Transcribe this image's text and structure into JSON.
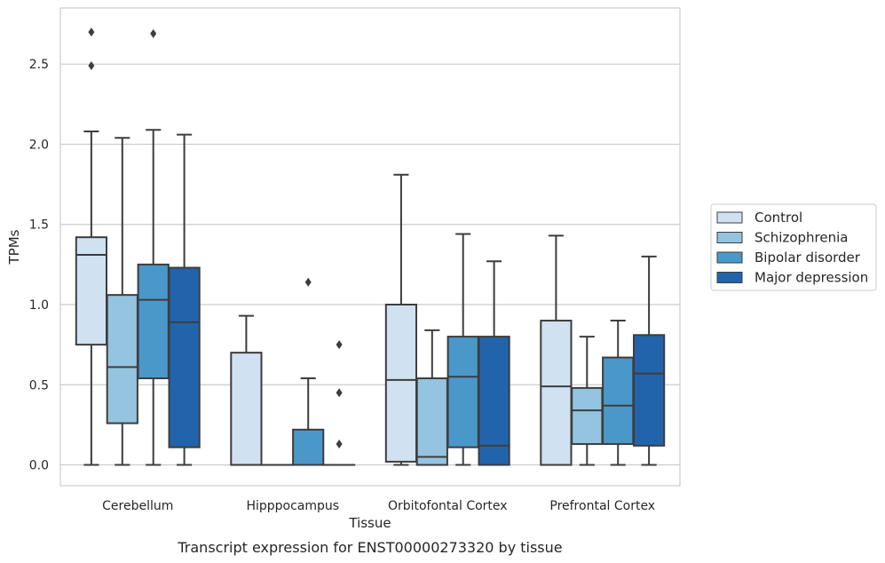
{
  "chart_data": {
    "type": "box",
    "title": "",
    "xlabel": "Tissue",
    "ylabel": "TPMs",
    "caption": "Transcript expression for ENST00000273320 by tissue",
    "ylim": [
      -0.13,
      2.85
    ],
    "yticks": [
      "0.0",
      "0.5",
      "1.0",
      "1.5",
      "2.0",
      "2.5"
    ],
    "grid": "horizontal",
    "legend_position": "right",
    "categories": [
      "Cerebellum",
      "Hipppocampus",
      "Orbitofontal Cortex",
      "Prefrontal Cortex"
    ],
    "series": [
      {
        "name": "Control",
        "color": "#d0e1f2",
        "boxes": [
          {
            "whislo": 0.0,
            "q1": 0.75,
            "med": 1.31,
            "q3": 1.42,
            "whishi": 2.08,
            "fliers": [
              2.7,
              2.49
            ]
          },
          {
            "whislo": 0.0,
            "q1": 0.0,
            "med": 0.0,
            "q3": 0.7,
            "whishi": 0.93,
            "fliers": []
          },
          {
            "whislo": 0.0,
            "q1": 0.02,
            "med": 0.53,
            "q3": 1.0,
            "whishi": 1.81,
            "fliers": []
          },
          {
            "whislo": 0.0,
            "q1": 0.0,
            "med": 0.49,
            "q3": 0.9,
            "whishi": 1.43,
            "fliers": []
          }
        ]
      },
      {
        "name": "Schizophrenia",
        "color": "#94c4df",
        "boxes": [
          {
            "whislo": 0.0,
            "q1": 0.26,
            "med": 0.61,
            "q3": 1.06,
            "whishi": 2.04,
            "fliers": []
          },
          {
            "whislo": 0.0,
            "q1": 0.0,
            "med": 0.0,
            "q3": 0.0,
            "whishi": 0.0,
            "fliers": []
          },
          {
            "whislo": 0.0,
            "q1": 0.0,
            "med": 0.05,
            "q3": 0.54,
            "whishi": 0.84,
            "fliers": []
          },
          {
            "whislo": 0.0,
            "q1": 0.13,
            "med": 0.34,
            "q3": 0.48,
            "whishi": 0.8,
            "fliers": []
          }
        ]
      },
      {
        "name": "Bipolar disorder",
        "color": "#4a98c9",
        "boxes": [
          {
            "whislo": 0.0,
            "q1": 0.54,
            "med": 1.03,
            "q3": 1.25,
            "whishi": 2.09,
            "fliers": [
              2.69
            ]
          },
          {
            "whislo": 0.0,
            "q1": 0.0,
            "med": 0.0,
            "q3": 0.22,
            "whishi": 0.54,
            "fliers": [
              1.14
            ]
          },
          {
            "whislo": 0.0,
            "q1": 0.11,
            "med": 0.55,
            "q3": 0.8,
            "whishi": 1.44,
            "fliers": []
          },
          {
            "whislo": 0.0,
            "q1": 0.13,
            "med": 0.37,
            "q3": 0.67,
            "whishi": 0.9,
            "fliers": []
          }
        ]
      },
      {
        "name": "Major depression",
        "color": "#2164ab",
        "boxes": [
          {
            "whislo": 0.0,
            "q1": 0.11,
            "med": 0.89,
            "q3": 1.23,
            "whishi": 2.06,
            "fliers": []
          },
          {
            "whislo": 0.0,
            "q1": 0.0,
            "med": 0.0,
            "q3": 0.0,
            "whishi": 0.0,
            "fliers": [
              0.75,
              0.45,
              0.13
            ]
          },
          {
            "whislo": 0.0,
            "q1": 0.0,
            "med": 0.12,
            "q3": 0.8,
            "whishi": 1.27,
            "fliers": []
          },
          {
            "whislo": 0.0,
            "q1": 0.12,
            "med": 0.57,
            "q3": 0.81,
            "whishi": 1.3,
            "fliers": []
          }
        ]
      }
    ]
  }
}
